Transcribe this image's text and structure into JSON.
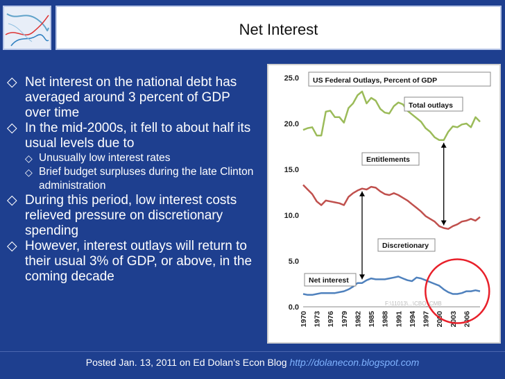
{
  "slide": {
    "title": "Net Interest",
    "bullets": [
      {
        "level": 1,
        "text": "Net interest on the national debt has averaged around 3 percent of GDP over time"
      },
      {
        "level": 1,
        "text": "In the mid-2000s, it fell to about half its usual levels due to"
      },
      {
        "level": 2,
        "text": "Unusually low interest rates"
      },
      {
        "level": 2,
        "text": "Brief budget surpluses during the late Clinton administration"
      },
      {
        "level": 1,
        "text": "During this period, low interest costs relieved pressure on discretionary spending"
      },
      {
        "level": 1,
        "text": "However, interest outlays will return to their usual 3% of GDP, or above, in the coming decade"
      }
    ],
    "footer": {
      "text": "Posted Jan. 13, 2011 on Ed Dolan’s Econ Blog",
      "link": "http://dolanecon.blogspot.com"
    }
  },
  "chart_data": {
    "type": "line",
    "title": "US Federal Outlays, Percent of GDP",
    "x": [
      1970,
      1971,
      1972,
      1973,
      1974,
      1975,
      1976,
      1977,
      1978,
      1979,
      1980,
      1981,
      1982,
      1983,
      1984,
      1985,
      1986,
      1987,
      1988,
      1989,
      1990,
      1991,
      1992,
      1993,
      1994,
      1995,
      1996,
      1997,
      1998,
      1999,
      2000,
      2001,
      2002,
      2003,
      2004,
      2005,
      2006,
      2007,
      2008,
      2009
    ],
    "x_tick_labels": [
      "1970",
      "1973",
      "1976",
      "1979",
      "1982",
      "1985",
      "1988",
      "1991",
      "1994",
      "1997",
      "2000",
      "2003",
      "2006"
    ],
    "ylim": [
      0,
      25
    ],
    "y_tick_labels": [
      "0.0",
      "5.0",
      "10.0",
      "15.0",
      "20.0",
      "25.0"
    ],
    "series": [
      {
        "name": "Total outlays",
        "color": "#9bbb59",
        "values": [
          19.3,
          19.5,
          19.6,
          18.7,
          18.7,
          21.3,
          21.4,
          20.7,
          20.7,
          20.1,
          21.7,
          22.2,
          23.1,
          23.5,
          22.2,
          22.8,
          22.5,
          21.6,
          21.2,
          21.1,
          21.9,
          22.3,
          22.1,
          21.4,
          21.0,
          20.6,
          20.2,
          19.5,
          19.1,
          18.5,
          18.2,
          18.2,
          19.1,
          19.7,
          19.6,
          19.9,
          20.0,
          19.6,
          20.7,
          20.2
        ]
      },
      {
        "name": "Entitlements",
        "color": "#c0504d",
        "values": [
          13.3,
          12.8,
          12.3,
          11.5,
          11.1,
          11.6,
          11.5,
          11.4,
          11.3,
          11.1,
          12.0,
          12.4,
          12.7,
          12.9,
          12.8,
          13.1,
          13.0,
          12.6,
          12.3,
          12.2,
          12.4,
          12.2,
          11.9,
          11.6,
          11.2,
          10.8,
          10.4,
          9.9,
          9.6,
          9.3,
          8.8,
          8.6,
          8.5,
          8.8,
          9.0,
          9.3,
          9.4,
          9.6,
          9.4,
          9.8
        ]
      },
      {
        "name": "Net interest",
        "color": "#4f81bd",
        "values": [
          1.4,
          1.3,
          1.3,
          1.4,
          1.5,
          1.5,
          1.5,
          1.5,
          1.6,
          1.7,
          1.9,
          2.2,
          2.6,
          2.6,
          2.9,
          3.1,
          3.0,
          3.0,
          3.0,
          3.1,
          3.2,
          3.3,
          3.1,
          2.9,
          2.8,
          3.2,
          3.1,
          2.9,
          2.7,
          2.5,
          2.3,
          1.9,
          1.6,
          1.4,
          1.4,
          1.5,
          1.7,
          1.7,
          1.8,
          1.7
        ]
      }
    ],
    "annotations": [
      "Total outlays",
      "Entitlements",
      "Discretionary",
      "Net interest"
    ],
    "source_note": "F:\\11013\\...\\CBO_CMB",
    "grid": false,
    "legend": "none"
  }
}
